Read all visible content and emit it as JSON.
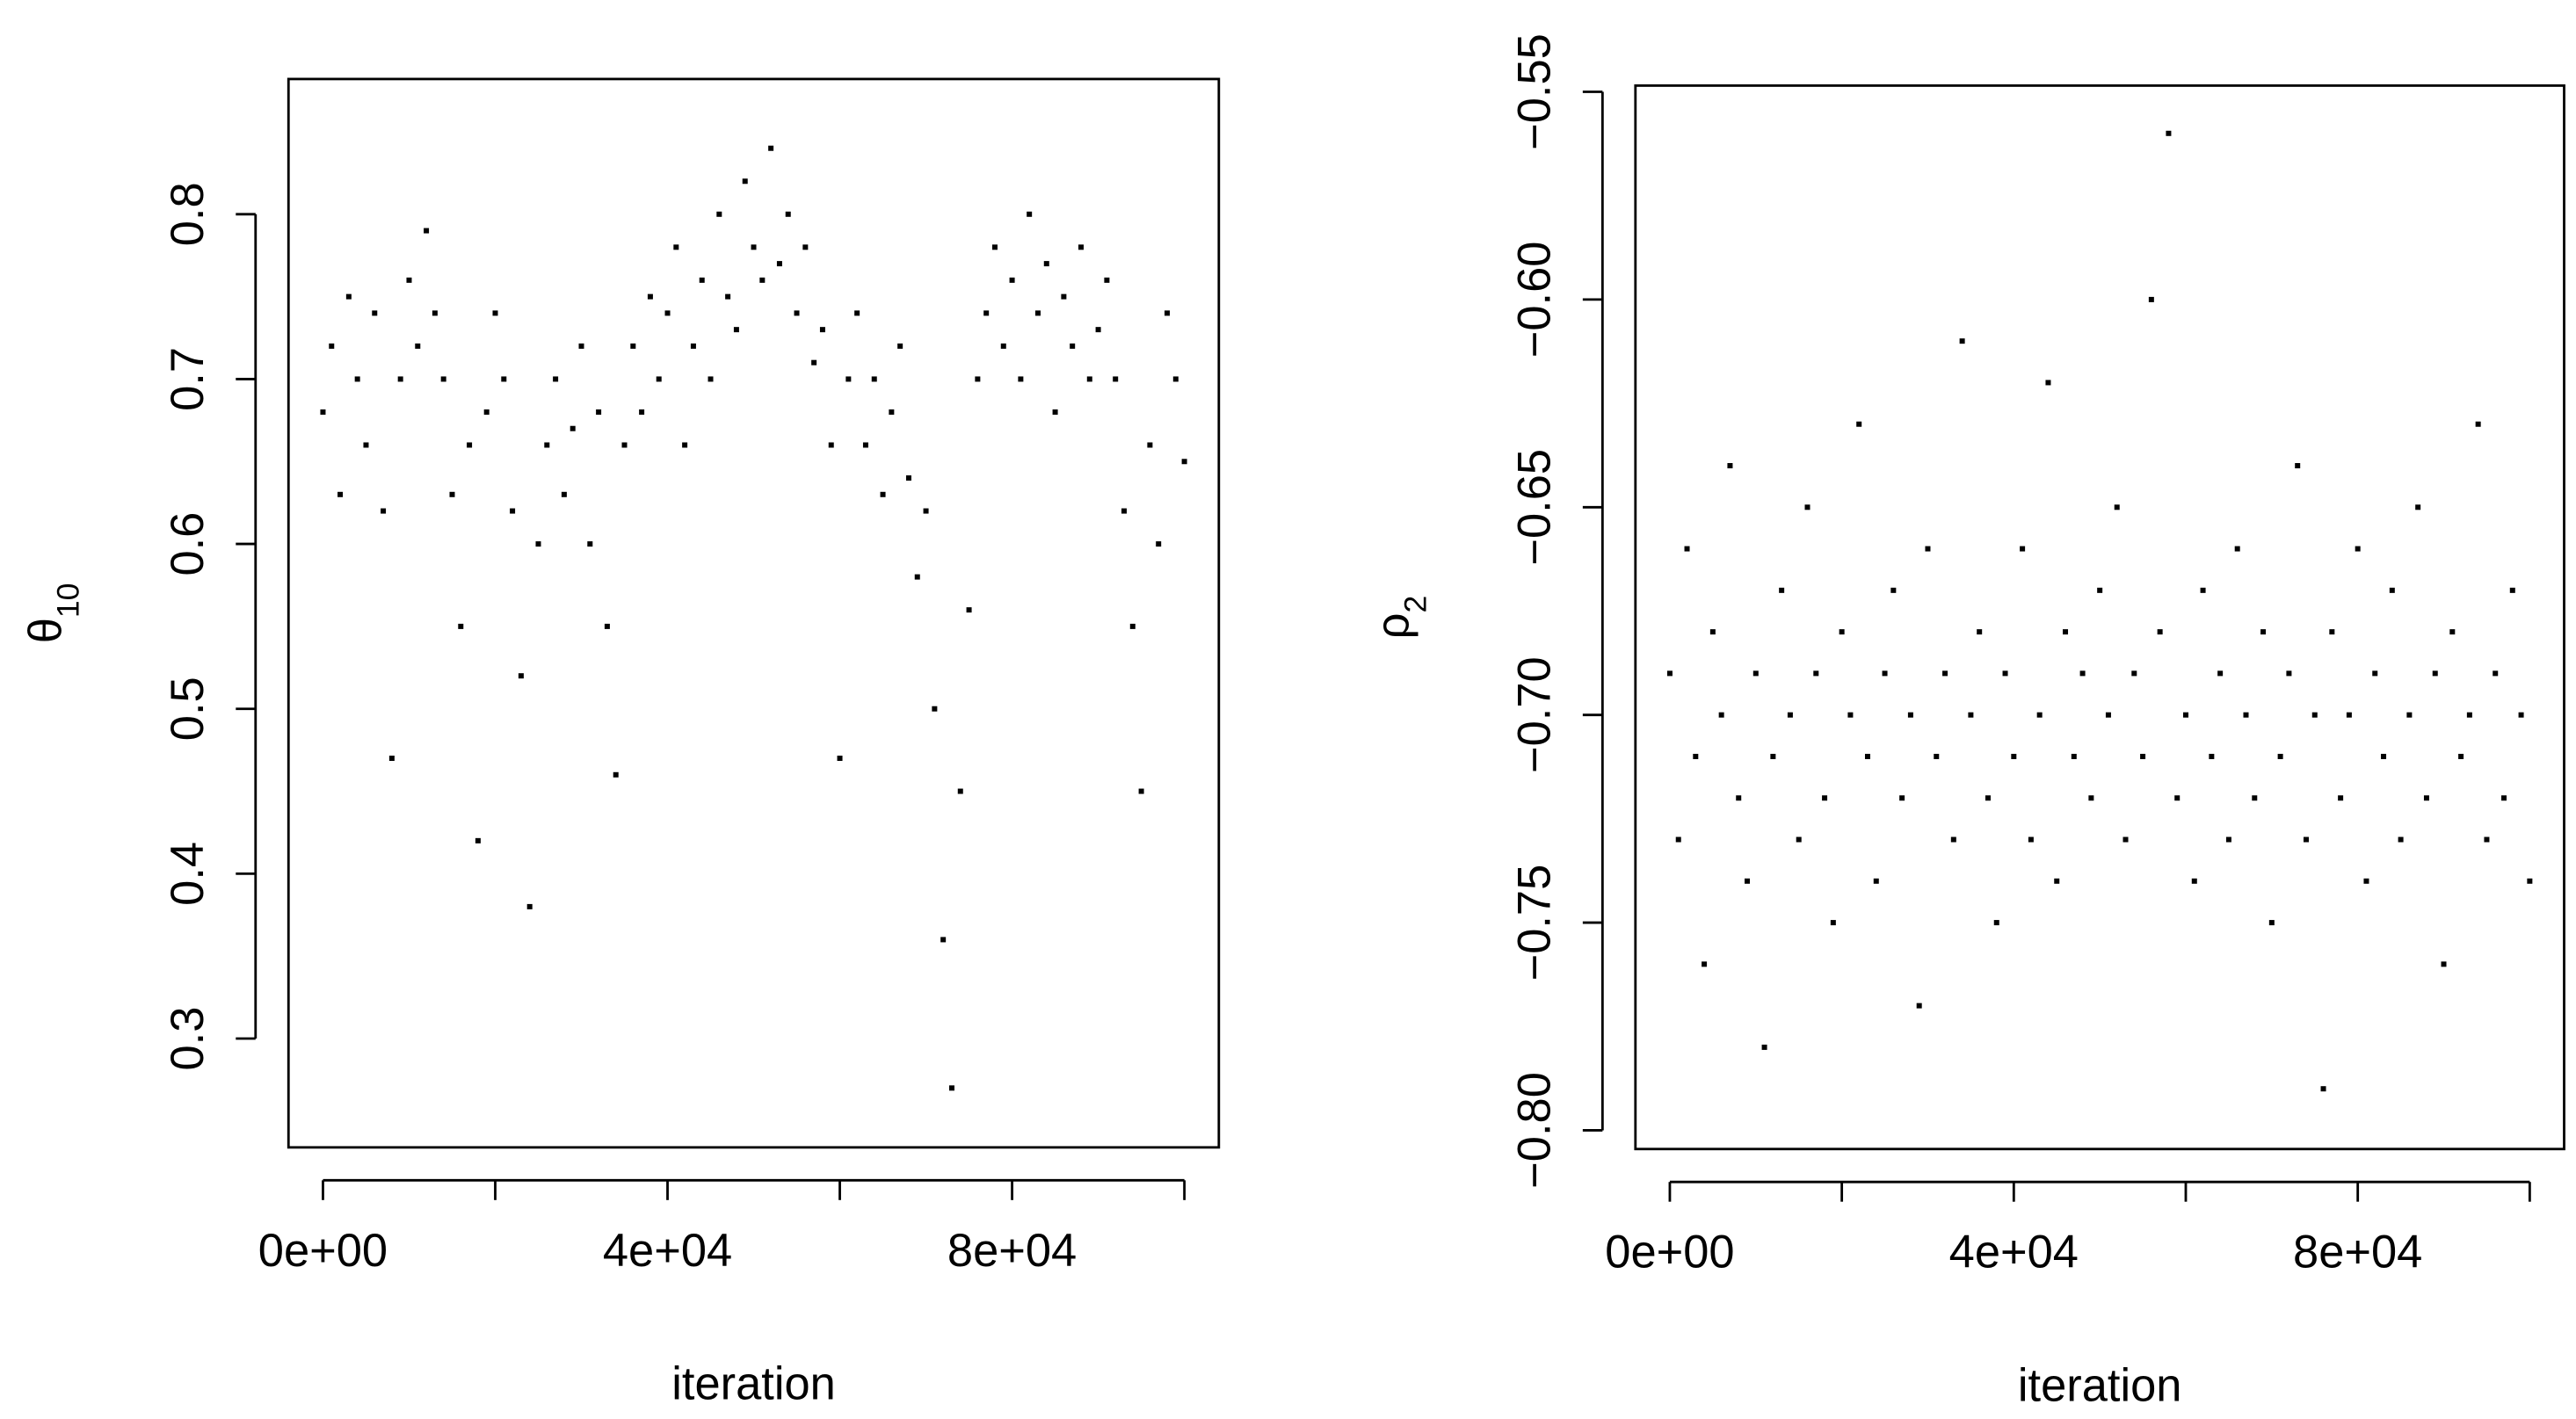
{
  "chart_data": [
    {
      "type": "scatter",
      "xlabel": "iteration",
      "ylabel": {
        "text": "θ",
        "sub": "10"
      },
      "color": "#000000",
      "xlim": [
        -4000,
        104000
      ],
      "ylim": [
        0.234,
        0.882
      ],
      "xticks": [
        {
          "value": 0,
          "label": "0e+00"
        },
        {
          "value": 20000,
          "label": null
        },
        {
          "value": 40000,
          "label": "4e+04"
        },
        {
          "value": 60000,
          "label": null
        },
        {
          "value": 80000,
          "label": "8e+04"
        },
        {
          "value": 100000,
          "label": null
        }
      ],
      "yticks": [
        0.3,
        0.4,
        0.5,
        0.6,
        0.7,
        0.8
      ],
      "x": [
        0,
        1000,
        2000,
        3000,
        4000,
        5000,
        6000,
        7000,
        8000,
        9000,
        10000,
        11000,
        12000,
        13000,
        14000,
        15000,
        16000,
        17000,
        18000,
        19000,
        20000,
        21000,
        22000,
        23000,
        24000,
        25000,
        26000,
        27000,
        28000,
        29000,
        30000,
        31000,
        32000,
        33000,
        34000,
        35000,
        36000,
        37000,
        38000,
        39000,
        40000,
        41000,
        42000,
        43000,
        44000,
        45000,
        46000,
        47000,
        48000,
        49000,
        50000,
        51000,
        52000,
        53000,
        54000,
        55000,
        56000,
        57000,
        58000,
        59000,
        60000,
        61000,
        62000,
        63000,
        64000,
        65000,
        66000,
        67000,
        68000,
        69000,
        70000,
        71000,
        72000,
        73000,
        74000,
        75000,
        76000,
        77000,
        78000,
        79000,
        80000,
        81000,
        82000,
        83000,
        84000,
        85000,
        86000,
        87000,
        88000,
        89000,
        90000,
        91000,
        92000,
        93000,
        94000,
        95000,
        96000,
        97000,
        98000,
        99000,
        100000
      ],
      "values": [
        0.68,
        0.72,
        0.63,
        0.75,
        0.7,
        0.66,
        0.74,
        0.62,
        0.47,
        0.7,
        0.76,
        0.72,
        0.79,
        0.74,
        0.7,
        0.63,
        0.55,
        0.66,
        0.42,
        0.68,
        0.74,
        0.7,
        0.62,
        0.52,
        0.38,
        0.6,
        0.66,
        0.7,
        0.63,
        0.67,
        0.72,
        0.6,
        0.68,
        0.55,
        0.46,
        0.66,
        0.72,
        0.68,
        0.75,
        0.7,
        0.74,
        0.78,
        0.66,
        0.72,
        0.76,
        0.7,
        0.8,
        0.75,
        0.73,
        0.82,
        0.78,
        0.76,
        0.84,
        0.77,
        0.8,
        0.74,
        0.78,
        0.71,
        0.73,
        0.66,
        0.47,
        0.7,
        0.74,
        0.66,
        0.7,
        0.63,
        0.68,
        0.72,
        0.64,
        0.58,
        0.62,
        0.5,
        0.36,
        0.27,
        0.45,
        0.56,
        0.7,
        0.74,
        0.78,
        0.72,
        0.76,
        0.7,
        0.8,
        0.74,
        0.77,
        0.68,
        0.75,
        0.72,
        0.78,
        0.7,
        0.73,
        0.76,
        0.7,
        0.62,
        0.55,
        0.45,
        0.66,
        0.6,
        0.74,
        0.7,
        0.65
      ]
    },
    {
      "type": "scatter",
      "xlabel": "iteration",
      "ylabel": {
        "text": "ρ",
        "sub": "2"
      },
      "color": "#000000",
      "xlim": [
        -4000,
        104000
      ],
      "ylim": [
        -0.8045,
        -0.5485
      ],
      "xticks": [
        {
          "value": 0,
          "label": "0e+00"
        },
        {
          "value": 20000,
          "label": null
        },
        {
          "value": 40000,
          "label": "4e+04"
        },
        {
          "value": 60000,
          "label": null
        },
        {
          "value": 80000,
          "label": "8e+04"
        },
        {
          "value": 100000,
          "label": null
        }
      ],
      "yticks": [
        {
          "value": -0.8,
          "label": "−0.80"
        },
        {
          "value": -0.75,
          "label": "−0.75"
        },
        {
          "value": -0.7,
          "label": "−0.70"
        },
        {
          "value": -0.65,
          "label": "−0.65"
        },
        {
          "value": -0.6,
          "label": "−0.60"
        },
        {
          "value": -0.55,
          "label": "−0.55"
        }
      ],
      "x": [
        0,
        1000,
        2000,
        3000,
        4000,
        5000,
        6000,
        7000,
        8000,
        9000,
        10000,
        11000,
        12000,
        13000,
        14000,
        15000,
        16000,
        17000,
        18000,
        19000,
        20000,
        21000,
        22000,
        23000,
        24000,
        25000,
        26000,
        27000,
        28000,
        29000,
        30000,
        31000,
        32000,
        33000,
        34000,
        35000,
        36000,
        37000,
        38000,
        39000,
        40000,
        41000,
        42000,
        43000,
        44000,
        45000,
        46000,
        47000,
        48000,
        49000,
        50000,
        51000,
        52000,
        53000,
        54000,
        55000,
        56000,
        57000,
        58000,
        59000,
        60000,
        61000,
        62000,
        63000,
        64000,
        65000,
        66000,
        67000,
        68000,
        69000,
        70000,
        71000,
        72000,
        73000,
        74000,
        75000,
        76000,
        77000,
        78000,
        79000,
        80000,
        81000,
        82000,
        83000,
        84000,
        85000,
        86000,
        87000,
        88000,
        89000,
        90000,
        91000,
        92000,
        93000,
        94000,
        95000,
        96000,
        97000,
        98000,
        99000,
        100000
      ],
      "values": [
        -0.69,
        -0.73,
        -0.66,
        -0.71,
        -0.76,
        -0.68,
        -0.7,
        -0.64,
        -0.72,
        -0.74,
        -0.69,
        -0.78,
        -0.71,
        -0.67,
        -0.7,
        -0.73,
        -0.65,
        -0.69,
        -0.72,
        -0.75,
        -0.68,
        -0.7,
        -0.63,
        -0.71,
        -0.74,
        -0.69,
        -0.67,
        -0.72,
        -0.7,
        -0.77,
        -0.66,
        -0.71,
        -0.69,
        -0.73,
        -0.61,
        -0.7,
        -0.68,
        -0.72,
        -0.75,
        -0.69,
        -0.71,
        -0.66,
        -0.73,
        -0.7,
        -0.62,
        -0.74,
        -0.68,
        -0.71,
        -0.69,
        -0.72,
        -0.67,
        -0.7,
        -0.65,
        -0.73,
        -0.69,
        -0.71,
        -0.6,
        -0.68,
        -0.56,
        -0.72,
        -0.7,
        -0.74,
        -0.67,
        -0.71,
        -0.69,
        -0.73,
        -0.66,
        -0.7,
        -0.72,
        -0.68,
        -0.75,
        -0.71,
        -0.69,
        -0.64,
        -0.73,
        -0.7,
        -0.79,
        -0.68,
        -0.72,
        -0.7,
        -0.66,
        -0.74,
        -0.69,
        -0.71,
        -0.67,
        -0.73,
        -0.7,
        -0.65,
        -0.72,
        -0.69,
        -0.76,
        -0.68,
        -0.71,
        -0.7,
        -0.63,
        -0.73,
        -0.69,
        -0.72,
        -0.67,
        -0.7,
        -0.74
      ]
    }
  ]
}
